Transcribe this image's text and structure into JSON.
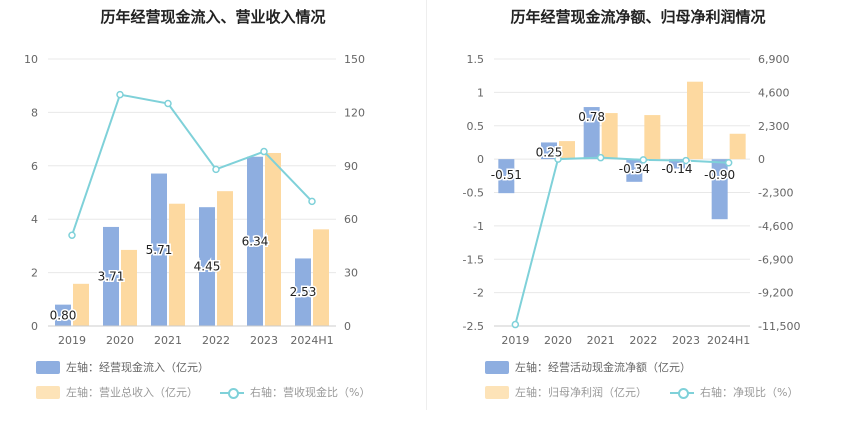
{
  "colors": {
    "bar_primary": "#8eaee0",
    "bar_secondary": "#fdd9a0",
    "line": "#7fd1d9",
    "axis_text": "#666666",
    "grid": "#e8e8e8"
  },
  "chart_data": [
    {
      "type": "bar",
      "title": "历年经营现金流入、营业收入情况",
      "categories": [
        "2019",
        "2020",
        "2021",
        "2022",
        "2023",
        "2024H1"
      ],
      "left_axis": {
        "ylim": [
          0,
          10
        ],
        "ticks": [
          "0",
          "2",
          "4",
          "6",
          "8",
          "10"
        ]
      },
      "right_axis": {
        "ylim": [
          0,
          150
        ],
        "ticks": [
          "0",
          "30",
          "60",
          "90",
          "120",
          "150"
        ]
      },
      "series": [
        {
          "name": "左轴：经营现金流入（亿元）",
          "axis": "left",
          "kind": "bar",
          "values": [
            0.8,
            3.71,
            5.71,
            4.45,
            6.34,
            2.53
          ],
          "labels": [
            "0.80",
            "3.71",
            "5.71",
            "4.45",
            "6.34",
            "2.53"
          ]
        },
        {
          "name": "左轴：营业总收入（亿元）",
          "axis": "left",
          "kind": "bar",
          "values": [
            1.58,
            2.85,
            4.58,
            5.05,
            6.48,
            3.62
          ]
        },
        {
          "name": "右轴：营收现金比（%）",
          "axis": "right",
          "kind": "line",
          "values": [
            51,
            130,
            125,
            88,
            98,
            70
          ]
        }
      ]
    },
    {
      "type": "bar",
      "title": "历年经营现金流净额、归母净利润情况",
      "categories": [
        "2019",
        "2020",
        "2021",
        "2022",
        "2023",
        "2024H1"
      ],
      "left_axis": {
        "ylim": [
          -2.5,
          1.5
        ],
        "ticks": [
          "-2.5",
          "-2",
          "-1.5",
          "-1",
          "-0.5",
          "0",
          "0.5",
          "1",
          "1.5"
        ]
      },
      "right_axis": {
        "ylim": [
          -11500,
          6900
        ],
        "ticks": [
          "-11,500",
          "-9,200",
          "-6,900",
          "-4,600",
          "-2,300",
          "0",
          "2,300",
          "4,600",
          "6,900"
        ]
      },
      "series": [
        {
          "name": "左轴：经营活动现金流净额（亿元）",
          "axis": "left",
          "kind": "bar",
          "values": [
            -0.51,
            0.25,
            0.78,
            -0.34,
            -0.14,
            -0.9
          ],
          "labels": [
            "-0.51",
            "0.25",
            "0.78",
            "-0.34",
            "-0.14",
            "-0.90"
          ]
        },
        {
          "name": "左轴：归母净利润（亿元）",
          "axis": "left",
          "kind": "bar",
          "values": [
            0.0,
            0.27,
            0.69,
            0.66,
            1.16,
            0.38
          ]
        },
        {
          "name": "右轴：净现比（%）",
          "axis": "right",
          "kind": "line",
          "values": [
            -11400,
            0,
            100,
            -50,
            -100,
            -250
          ]
        }
      ]
    }
  ]
}
